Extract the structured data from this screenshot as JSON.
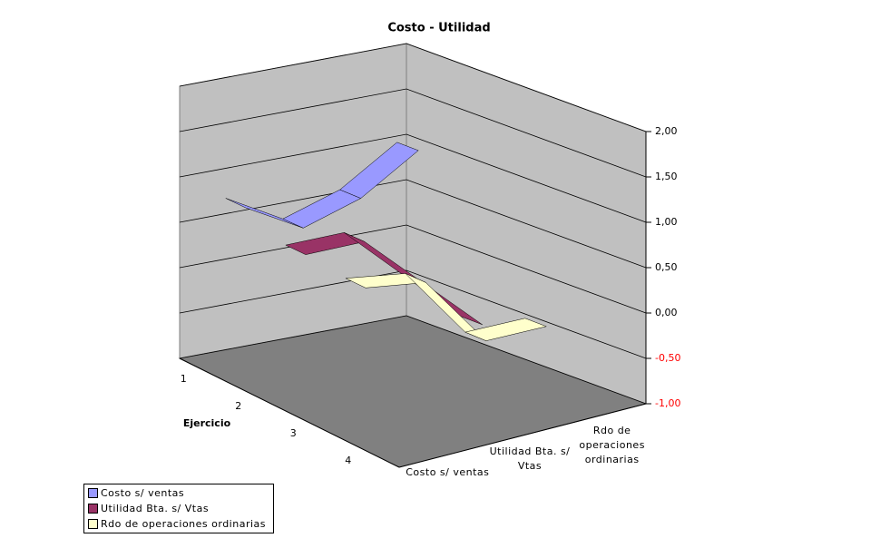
{
  "chart_data": {
    "type": "ribbon3d",
    "title": "Costo - Utilidad",
    "x_label": "Ejercicio",
    "categories": [
      "1",
      "2",
      "3",
      "4"
    ],
    "series": [
      {
        "name": "Costo s/ ventas",
        "color": "#9999ff",
        "values": [
          0.8,
          0.45,
          0.65,
          1.05
        ]
      },
      {
        "name": "Utilidad Bta. s/ Vtas",
        "color": "#993366",
        "values": [
          0.6,
          0.6,
          0.0,
          -0.6
        ]
      },
      {
        "name": "Rdo de operaciones ordinarias",
        "color": "#ffffcc",
        "values": [
          0.55,
          0.45,
          -0.35,
          -0.35
        ]
      }
    ],
    "ylim": [
      -1,
      2
    ],
    "yticks": [
      {
        "value": -1,
        "label": "-1,00"
      },
      {
        "value": -0.5,
        "label": "-0,50"
      },
      {
        "value": 0,
        "label": "0,00"
      },
      {
        "value": 0.5,
        "label": "0,50"
      },
      {
        "value": 1,
        "label": "1,00"
      },
      {
        "value": 1.5,
        "label": "1,50"
      },
      {
        "value": 2,
        "label": "2,00"
      }
    ],
    "negative_tick_color": "#ff0000",
    "grid": true
  }
}
